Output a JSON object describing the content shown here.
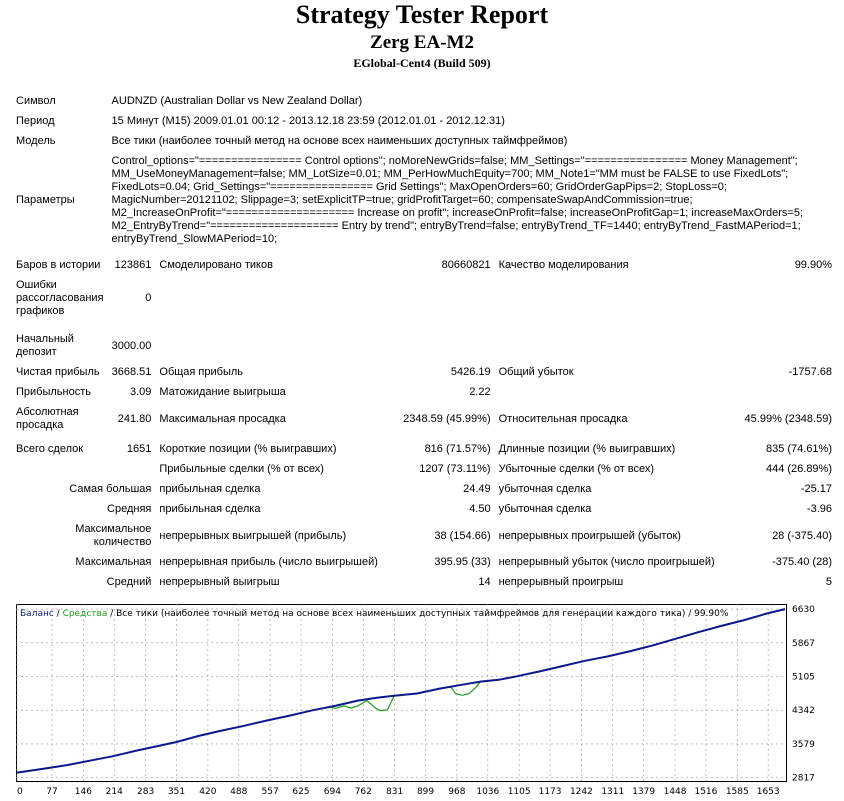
{
  "header": {
    "title": "Strategy Tester Report",
    "expert": "Zerg EA-M2",
    "server": "EGlobal-Cent4 (Build 509)"
  },
  "info": {
    "symbol_label": "Символ",
    "symbol_value": "AUDNZD (Australian Dollar vs New Zealand Dollar)",
    "period_label": "Период",
    "period_value": "15 Минут (M15) 2009.01.01 00:12 - 2013.12.18 23:59 (2012.01.01 - 2012.12.31)",
    "model_label": "Модель",
    "model_value": "Все тики (наиболее точный метод на основе всех наименьших доступных таймфреймов)",
    "params_label": "Параметры",
    "params_value": "Control_options=\"================ Control options\"; noMoreNewGrids=false; MM_Settings=\"================ Money Management\"; MM_UseMoneyManagement=false; MM_LotSize=0.01; MM_PerHowMuchEquity=700; MM_Note1=\"MM must be FALSE to use FixedLots\"; FixedLots=0.04; Grid_Settings=\"================ Grid Settings\"; MaxOpenOrders=60; GridOrderGapPips=2; StopLoss=0; MagicNumber=20121102; Slippage=3; setExplicitTP=true; gridProfitTarget=60; compensateSwapAndCommission=true; M2_IncreaseOnProfit=\"==================== Increase on profit\"; increaseOnProfit=false; increaseOnProfitGap=1; increaseMaxOrders=5; M2_EntryByTrend=\"==================== Entry by trend\"; entryByTrend=false; entryByTrend_TF=1440; entryByTrend_FastMAPeriod=1; entryByTrend_SlowMAPeriod=10;"
  },
  "stats": {
    "bars_label": "Баров в истории",
    "bars_value": "123861",
    "ticks_label": "Смоделировано тиков",
    "ticks_value": "80660821",
    "quality_label": "Качество моделирования",
    "quality_value": "99.90%",
    "errors_label": "Ошибки рассогласования графиков",
    "errors_value": "0",
    "deposit_label": "Начальный депозит",
    "deposit_value": "3000.00",
    "net_label": "Чистая прибыль",
    "net_value": "3668.51",
    "gross_profit_label": "Общая прибыль",
    "gross_profit_value": "5426.19",
    "gross_loss_label": "Общий убыток",
    "gross_loss_value": "-1757.68",
    "pf_label": "Прибыльность",
    "pf_value": "3.09",
    "expect_label": "Матожидание выигрыша",
    "expect_value": "2.22",
    "abs_dd_label": "Абсолютная просадка",
    "abs_dd_value": "241.80",
    "max_dd_label": "Максимальная просадка",
    "max_dd_value": "2348.59 (45.99%)",
    "rel_dd_label": "Относительная просадка",
    "rel_dd_value": "45.99% (2348.59)",
    "trades_label": "Всего сделок",
    "trades_value": "1651",
    "short_label": "Короткие позиции (% выигравших)",
    "short_value": "816 (71.57%)",
    "long_label": "Длинные позиции (% выигравших)",
    "long_value": "835 (74.61%)",
    "prof_trades_label": "Прибыльные сделки (% от всех)",
    "prof_trades_value": "1207 (73.11%)",
    "loss_trades_label": "Убыточные сделки (% от всех)",
    "loss_trades_value": "444 (26.89%)",
    "largest_label": "Самая большая",
    "largest_profit_label": "прибыльная сделка",
    "largest_profit_value": "24.49",
    "largest_loss_label": "убыточная сделка",
    "largest_loss_value": "-25.17",
    "average_label": "Средняя",
    "average_profit_label": "прибыльная сделка",
    "average_profit_value": "4.50",
    "average_loss_label": "убыточная сделка",
    "average_loss_value": "-3.96",
    "max_count_label": "Максимальное количество",
    "max_consec_wins_label": "непрерывных выигрышей (прибыль)",
    "max_consec_wins_value": "38 (154.66)",
    "max_consec_losses_label": "непрерывных проигрышей (убыток)",
    "max_consec_losses_value": "28 (-375.40)",
    "maximal_label": "Максимальная",
    "maximal_profit_label": "непрерывная прибыль (число выигрышей)",
    "maximal_profit_value": "395.95 (33)",
    "maximal_loss_label": "непрерывный убыток (число проигрышей)",
    "maximal_loss_value": "-375.40 (28)",
    "avg_consec_label": "Средний",
    "avg_consec_wins_label": "непрерывный выигрыш",
    "avg_consec_wins_value": "14",
    "avg_consec_losses_label": "непрерывный проигрыш",
    "avg_consec_losses_value": "5"
  },
  "chart_data": {
    "type": "line",
    "legend_balance": "Баланс",
    "legend_sep1": " / ",
    "legend_equity": "Средства",
    "legend_rest": " / Все тики (наиболее точный метод на основе всех наименьших доступных таймфреймов для генерации каждого тика) / 99.90%",
    "x_ticks": [
      0,
      77,
      146,
      214,
      283,
      351,
      420,
      488,
      557,
      625,
      694,
      762,
      831,
      899,
      968,
      1036,
      1105,
      1173,
      1242,
      1311,
      1379,
      1448,
      1516,
      1585,
      1653
    ],
    "y_ticks": [
      2817,
      3579,
      4342,
      5105,
      5867,
      6630
    ],
    "xlim": [
      0,
      1690
    ],
    "ylim": [
      2740,
      6700
    ],
    "colors": {
      "balance": "#0a1a8c",
      "equity": "#1aa01a",
      "grid": "#9a9a9a",
      "frame": "#000000"
    },
    "series": [
      {
        "name": "Баланс",
        "x": [
          0,
          60,
          110,
          160,
          210,
          260,
          300,
          350,
          400,
          450,
          500,
          550,
          600,
          650,
          700,
          750,
          790,
          830,
          880,
          930,
          980,
          1020,
          1060,
          1100,
          1150,
          1200,
          1250,
          1300,
          1350,
          1400,
          1450,
          1500,
          1550,
          1600,
          1650,
          1690
        ],
        "y": [
          2930,
          3020,
          3100,
          3200,
          3300,
          3420,
          3510,
          3620,
          3760,
          3880,
          3990,
          4110,
          4220,
          4340,
          4440,
          4560,
          4620,
          4670,
          4720,
          4830,
          4920,
          4990,
          5030,
          5110,
          5220,
          5340,
          5460,
          5560,
          5680,
          5810,
          5960,
          6110,
          6250,
          6380,
          6530,
          6630
        ]
      },
      {
        "name": "Средства",
        "x": [
          0,
          60,
          110,
          160,
          210,
          260,
          300,
          350,
          400,
          450,
          500,
          550,
          600,
          650,
          690,
          700,
          720,
          735,
          750,
          770,
          790,
          800,
          815,
          830,
          880,
          930,
          955,
          965,
          980,
          995,
          1010,
          1020,
          1060,
          1100,
          1150,
          1200,
          1250,
          1300,
          1350,
          1400,
          1450,
          1500,
          1550,
          1600,
          1650,
          1690
        ],
        "y": [
          2930,
          3020,
          3100,
          3200,
          3300,
          3420,
          3510,
          3620,
          3760,
          3880,
          3990,
          4110,
          4220,
          4340,
          4420,
          4380,
          4440,
          4390,
          4440,
          4560,
          4380,
          4330,
          4350,
          4670,
          4720,
          4830,
          4870,
          4720,
          4680,
          4720,
          4860,
          4990,
          5030,
          5110,
          5220,
          5340,
          5460,
          5560,
          5680,
          5810,
          5960,
          6110,
          6250,
          6380,
          6530,
          6630
        ]
      }
    ]
  }
}
